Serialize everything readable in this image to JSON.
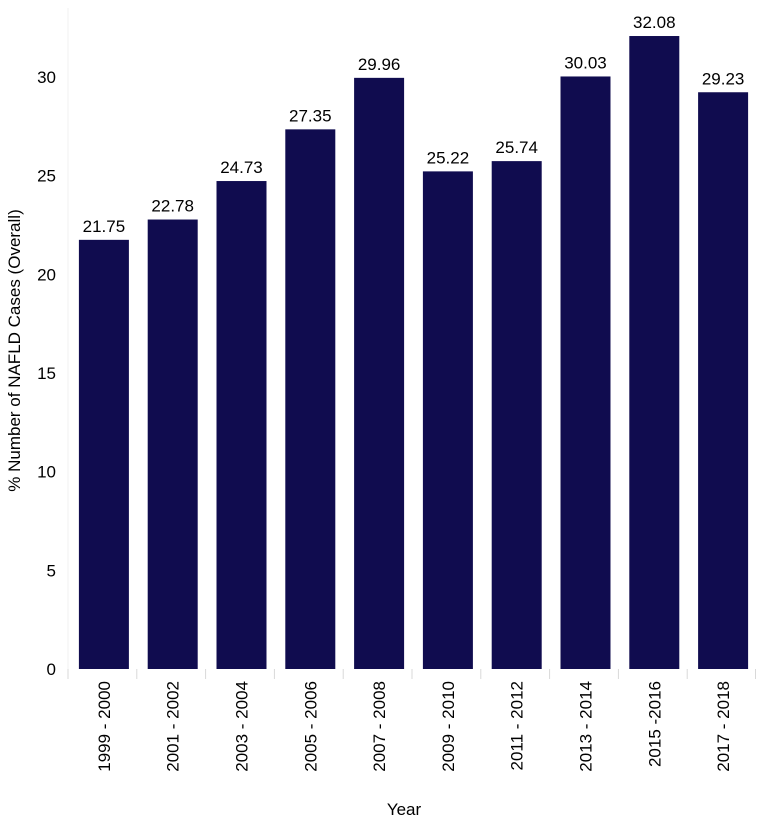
{
  "chart_data": {
    "type": "bar",
    "title": "",
    "xlabel": "Year",
    "ylabel": "% Number of NAFLD Cases (Overall)",
    "categories": [
      "1999 - 2000",
      "2001 - 2002",
      "2003 - 2004",
      "2005 - 2006",
      "2007 - 2008",
      "2009 - 2010",
      "2011 - 2012",
      "2013 - 2014",
      "2015 -2016",
      "2017 - 2018"
    ],
    "values": [
      21.75,
      22.78,
      24.73,
      27.35,
      29.96,
      25.22,
      25.74,
      30.03,
      32.08,
      29.23
    ],
    "data_labels": [
      "21.75",
      "22.78",
      "24.73",
      "27.35",
      "29.96",
      "25.22",
      "25.74",
      "30.03",
      "32.08",
      "29.23"
    ],
    "ylim": [
      0,
      33.5
    ],
    "yticks": [
      0,
      5,
      10,
      15,
      20,
      25,
      30
    ],
    "ytick_labels": [
      "0",
      "5",
      "10",
      "15",
      "20",
      "25",
      "30"
    ],
    "grid": false,
    "legend": "none",
    "bar_color": "#100c4f"
  }
}
